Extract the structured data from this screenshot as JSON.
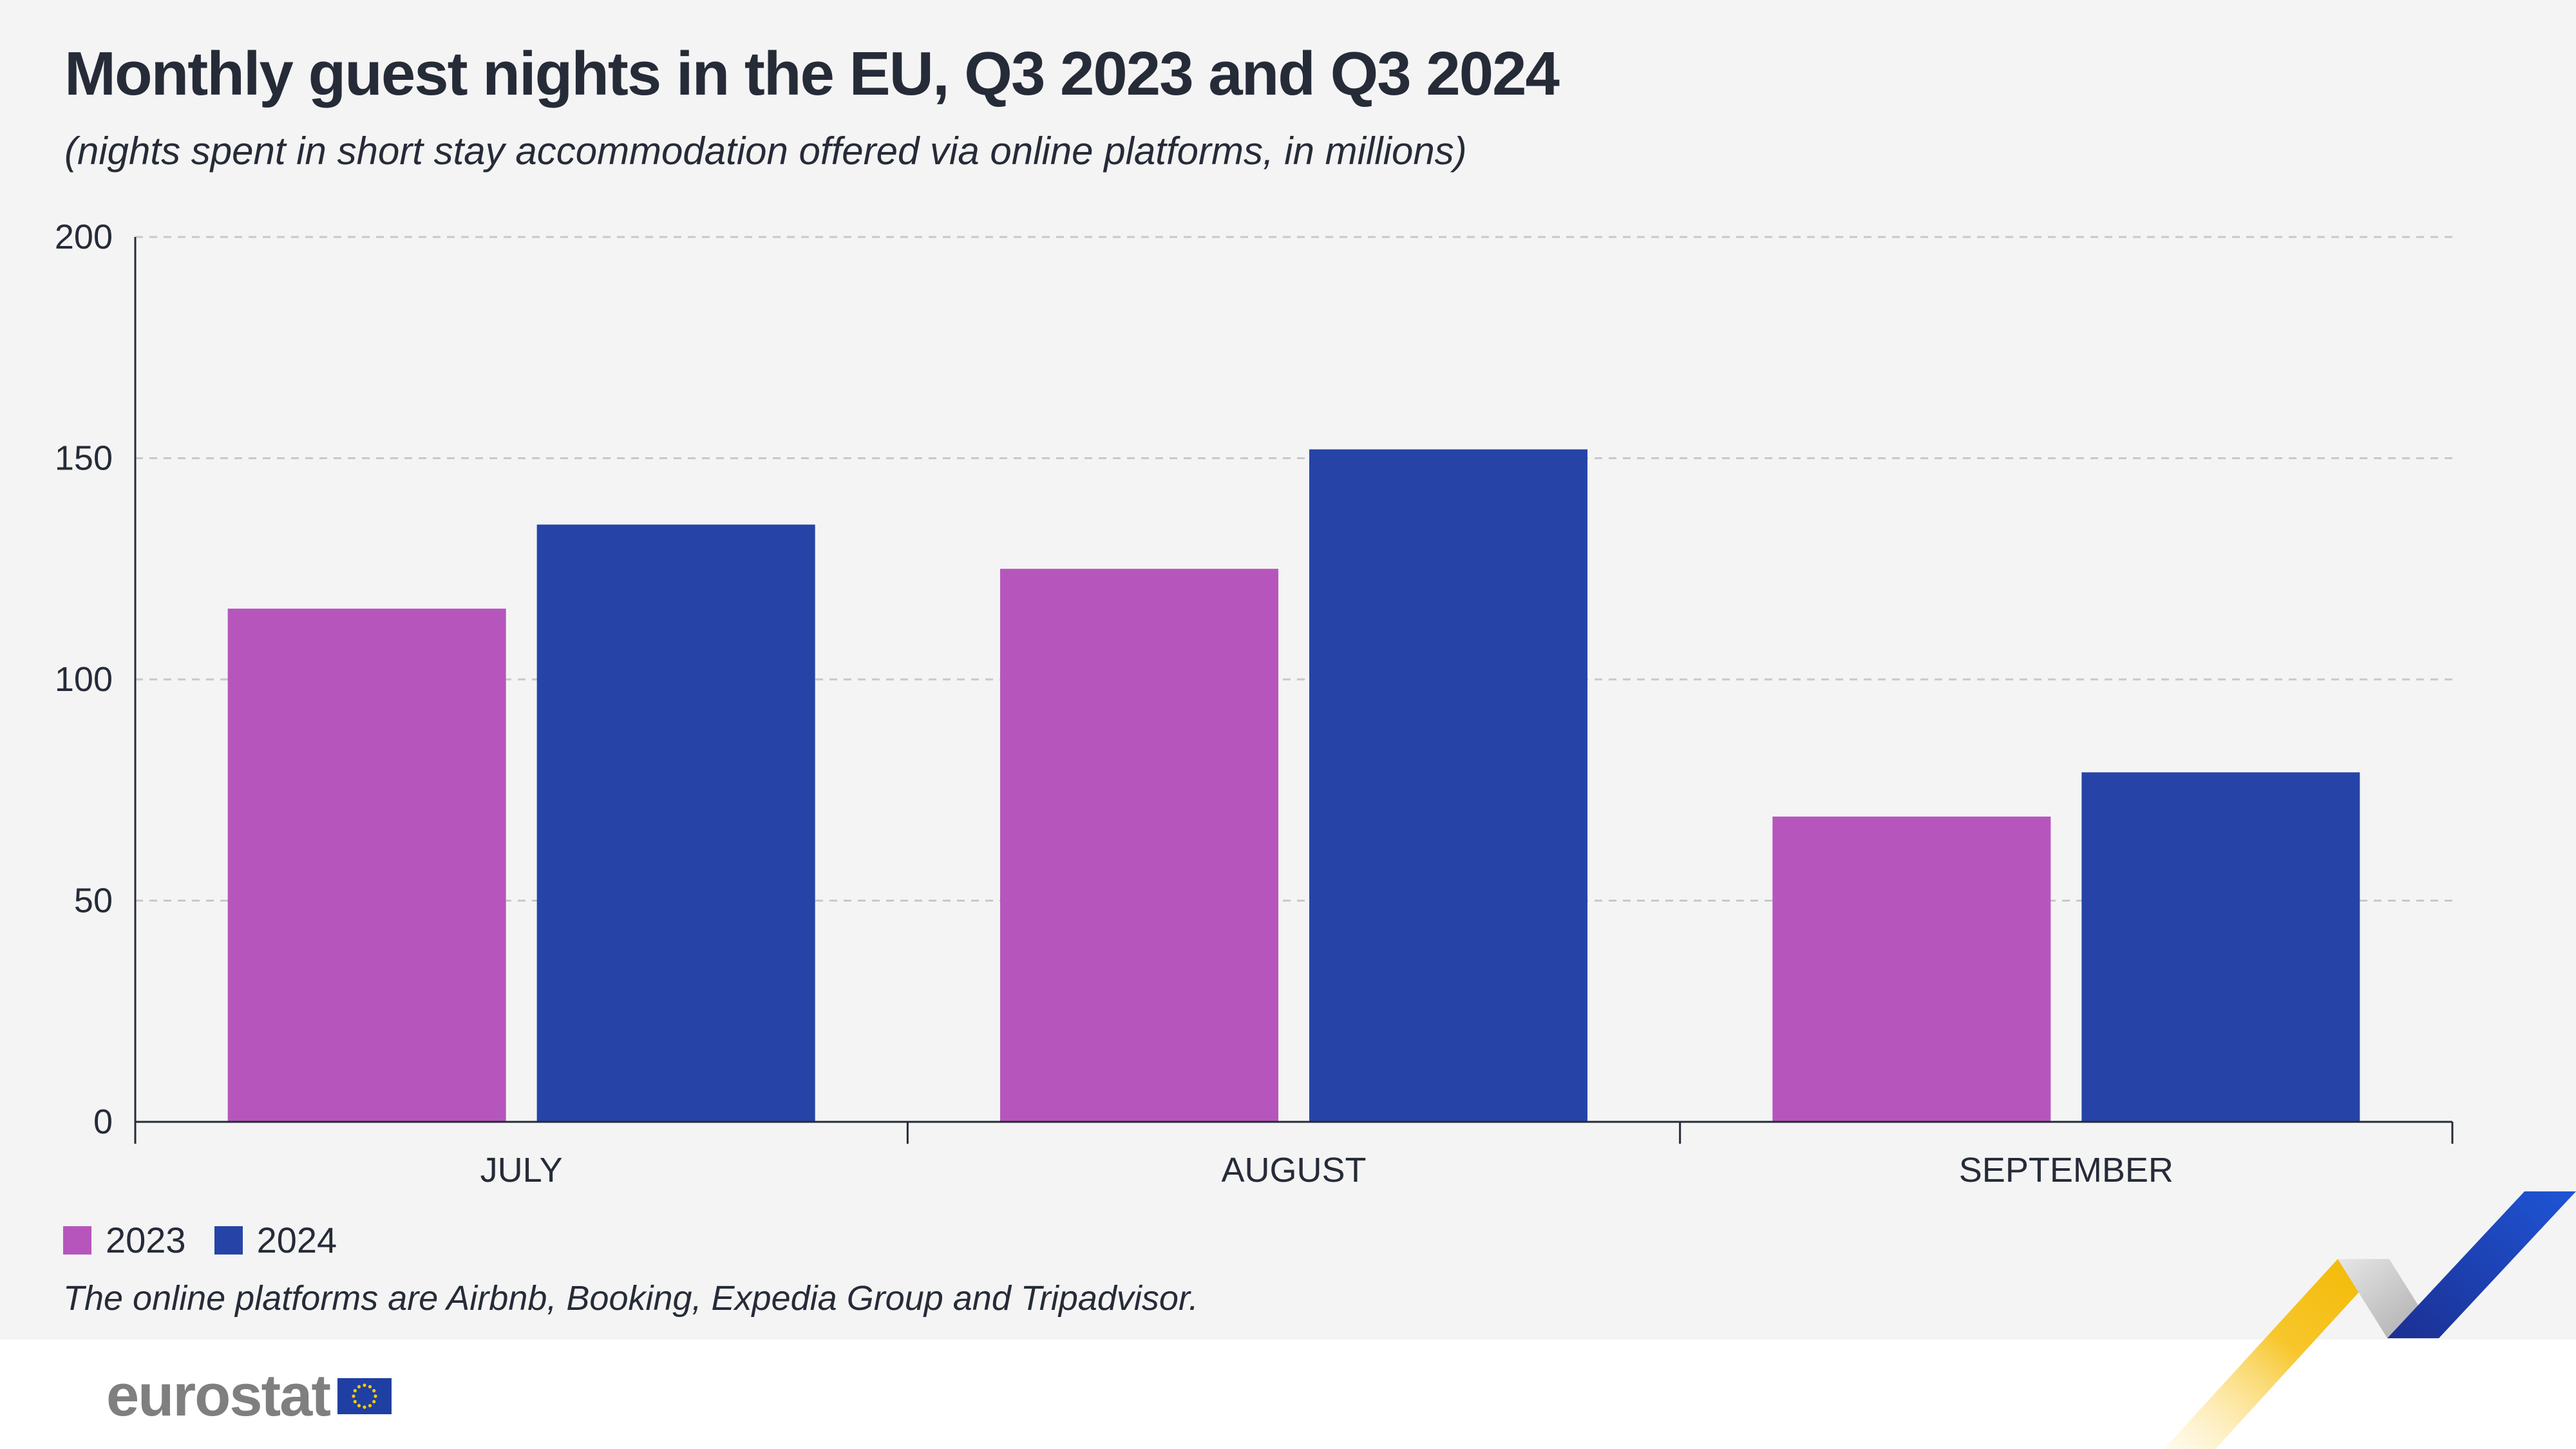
{
  "chart_data": {
    "type": "bar",
    "title": "Monthly guest nights in the EU, Q3 2023 and Q3 2024",
    "subtitle": "(nights spent in short stay accommodation offered via online platforms, in millions)",
    "categories": [
      "JULY",
      "AUGUST",
      "SEPTEMBER"
    ],
    "series": [
      {
        "name": "2023",
        "values": [
          116,
          125,
          69
        ],
        "color": "#b656bd"
      },
      {
        "name": "2024",
        "values": [
          135,
          152,
          79
        ],
        "color": "#2644a7"
      }
    ],
    "ylim": [
      0,
      200
    ],
    "yticks": [
      0,
      50,
      100,
      150,
      200
    ],
    "grid": true,
    "legend_position": "bottom-left"
  },
  "footnote": "The online platforms are Airbnb, Booking, Expedia Group and Tripadvisor.",
  "brand": {
    "wordmark": "eurostat",
    "icon": "eu-flag-icon"
  }
}
